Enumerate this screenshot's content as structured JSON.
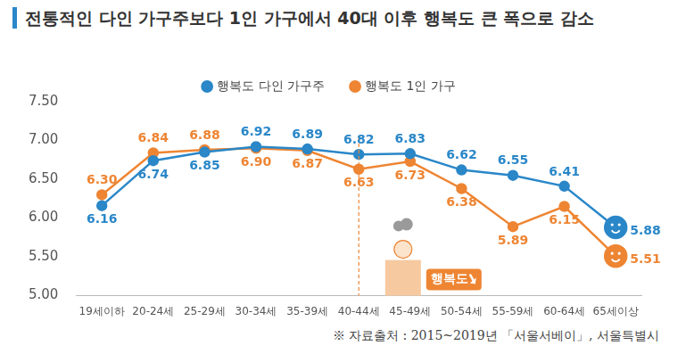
{
  "chart_data": {
    "type": "line",
    "title": "전통적인 다인 가구주보다 1인 가구에서 40대 이후 행복도 큰 폭으로 감소",
    "source": "※ 자료출처 : 2015~2019년 「서울서베이」, 서울특별시",
    "categories": [
      "19세이하",
      "20-24세",
      "25-29세",
      "30-34세",
      "35-39세",
      "40-44세",
      "45-49세",
      "50-54세",
      "55-59세",
      "60-64세",
      "65세이상"
    ],
    "series": [
      {
        "name": "행복도 다인 가구주",
        "color": "#2a87c8",
        "marker": "circle",
        "values": [
          6.16,
          6.74,
          6.85,
          6.92,
          6.89,
          6.82,
          6.83,
          6.62,
          6.55,
          6.41,
          5.88
        ],
        "value_labels": [
          "6.16",
          "6.74",
          "6.85",
          "6.92",
          "6.89",
          "6.82",
          "6.83",
          "6.62",
          "6.55",
          "6.41",
          "5.88"
        ]
      },
      {
        "name": "행복도 1인 가구",
        "color": "#ee8533",
        "marker": "circle",
        "values": [
          6.3,
          6.84,
          6.88,
          6.9,
          6.87,
          6.63,
          6.73,
          6.38,
          5.89,
          6.15,
          5.51
        ],
        "value_labels": [
          "6.30",
          "6.84",
          "6.88",
          "6.90",
          "6.87",
          "6.63",
          "6.73",
          "6.38",
          "5.89",
          "6.15",
          "5.51"
        ]
      }
    ],
    "ylim": [
      5,
      7.5
    ],
    "yticks": [
      {
        "value": 5,
        "label": "5.00"
      },
      {
        "value": 5.5,
        "label": "5.50"
      },
      {
        "value": 6,
        "label": "6.00"
      },
      {
        "value": 6.5,
        "label": "6.50"
      },
      {
        "value": 7,
        "label": "7.00"
      },
      {
        "value": 7.5,
        "label": "7.50"
      }
    ],
    "grid": false,
    "legend": "top",
    "data_labels": true,
    "annotation": {
      "text": "행복도",
      "category": "40-44세"
    }
  }
}
